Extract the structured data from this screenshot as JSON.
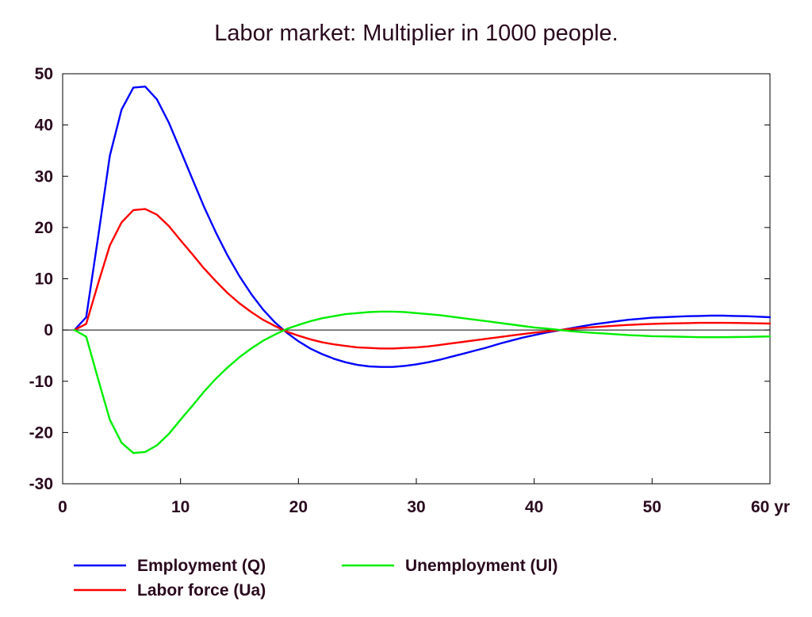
{
  "chart_data": {
    "type": "line",
    "title": "Labor market: Multiplier in 1000 people.",
    "xlabel": "",
    "ylabel": "",
    "xlim": [
      0,
      60
    ],
    "ylim": [
      -30,
      50
    ],
    "x_ticks": [
      {
        "value": 0,
        "label": "0"
      },
      {
        "value": 10,
        "label": "10"
      },
      {
        "value": 20,
        "label": "20"
      },
      {
        "value": 30,
        "label": "30"
      },
      {
        "value": 40,
        "label": "40"
      },
      {
        "value": 50,
        "label": "50"
      },
      {
        "value": 60,
        "label": "60 yr"
      }
    ],
    "y_ticks": [
      {
        "value": 50,
        "label": "50"
      },
      {
        "value": 40,
        "label": "40"
      },
      {
        "value": 30,
        "label": "30"
      },
      {
        "value": 20,
        "label": "20"
      },
      {
        "value": 10,
        "label": "10"
      },
      {
        "value": 0,
        "label": "0"
      },
      {
        "value": -10,
        "label": "-10"
      },
      {
        "value": -20,
        "label": "-20"
      },
      {
        "value": -30,
        "label": "-30"
      }
    ],
    "zero_line": true,
    "grid": false,
    "legend_position": "bottom",
    "series": [
      {
        "name": "Employment (Q)",
        "color": "#0000ff",
        "points": [
          [
            1,
            0
          ],
          [
            2,
            2.5
          ],
          [
            3,
            18
          ],
          [
            4,
            34
          ],
          [
            5,
            43
          ],
          [
            6,
            47.3
          ],
          [
            7,
            47.5
          ],
          [
            8,
            45
          ],
          [
            9,
            40.5
          ],
          [
            10,
            35
          ],
          [
            11,
            29.5
          ],
          [
            12,
            24
          ],
          [
            13,
            19
          ],
          [
            14,
            14.5
          ],
          [
            15,
            10.5
          ],
          [
            16,
            7
          ],
          [
            17,
            4
          ],
          [
            18,
            1.5
          ],
          [
            19,
            -0.5
          ],
          [
            20,
            -2.2
          ],
          [
            21,
            -3.6
          ],
          [
            22,
            -4.7
          ],
          [
            23,
            -5.6
          ],
          [
            24,
            -6.3
          ],
          [
            25,
            -6.8
          ],
          [
            26,
            -7.1
          ],
          [
            27,
            -7.2
          ],
          [
            28,
            -7.2
          ],
          [
            29,
            -7
          ],
          [
            30,
            -6.7
          ],
          [
            31,
            -6.3
          ],
          [
            32,
            -5.8
          ],
          [
            33,
            -5.2
          ],
          [
            34,
            -4.6
          ],
          [
            35,
            -4
          ],
          [
            36,
            -3.4
          ],
          [
            37,
            -2.7
          ],
          [
            38,
            -2.1
          ],
          [
            39,
            -1.5
          ],
          [
            40,
            -1
          ],
          [
            41,
            -0.5
          ],
          [
            42,
            -0.1
          ],
          [
            43,
            0.3
          ],
          [
            44,
            0.7
          ],
          [
            45,
            1.1
          ],
          [
            46,
            1.4
          ],
          [
            47,
            1.7
          ],
          [
            48,
            2
          ],
          [
            49,
            2.2
          ],
          [
            50,
            2.4
          ],
          [
            51,
            2.5
          ],
          [
            52,
            2.6
          ],
          [
            53,
            2.7
          ],
          [
            54,
            2.75
          ],
          [
            55,
            2.8
          ],
          [
            56,
            2.8
          ],
          [
            57,
            2.75
          ],
          [
            58,
            2.7
          ],
          [
            59,
            2.6
          ],
          [
            60,
            2.5
          ]
        ]
      },
      {
        "name": "Labor force (Ua)",
        "color": "#ff0000",
        "points": [
          [
            1,
            0
          ],
          [
            2,
            1.2
          ],
          [
            3,
            9
          ],
          [
            4,
            16.5
          ],
          [
            5,
            21
          ],
          [
            6,
            23.4
          ],
          [
            7,
            23.6
          ],
          [
            8,
            22.5
          ],
          [
            9,
            20.3
          ],
          [
            10,
            17.5
          ],
          [
            11,
            14.8
          ],
          [
            12,
            12
          ],
          [
            13,
            9.5
          ],
          [
            14,
            7.2
          ],
          [
            15,
            5.2
          ],
          [
            16,
            3.5
          ],
          [
            17,
            2
          ],
          [
            18,
            0.8
          ],
          [
            19,
            -0.3
          ],
          [
            20,
            -1.1
          ],
          [
            21,
            -1.8
          ],
          [
            22,
            -2.4
          ],
          [
            23,
            -2.8
          ],
          [
            24,
            -3.1
          ],
          [
            25,
            -3.4
          ],
          [
            26,
            -3.5
          ],
          [
            27,
            -3.6
          ],
          [
            28,
            -3.6
          ],
          [
            29,
            -3.5
          ],
          [
            30,
            -3.4
          ],
          [
            31,
            -3.2
          ],
          [
            32,
            -2.9
          ],
          [
            33,
            -2.6
          ],
          [
            34,
            -2.3
          ],
          [
            35,
            -2
          ],
          [
            36,
            -1.7
          ],
          [
            37,
            -1.4
          ],
          [
            38,
            -1.1
          ],
          [
            39,
            -0.8
          ],
          [
            40,
            -0.5
          ],
          [
            41,
            -0.3
          ],
          [
            42,
            -0.05
          ],
          [
            43,
            0.2
          ],
          [
            44,
            0.4
          ],
          [
            45,
            0.55
          ],
          [
            46,
            0.7
          ],
          [
            47,
            0.85
          ],
          [
            48,
            1
          ],
          [
            49,
            1.1
          ],
          [
            50,
            1.2
          ],
          [
            51,
            1.25
          ],
          [
            52,
            1.3
          ],
          [
            53,
            1.35
          ],
          [
            54,
            1.4
          ],
          [
            55,
            1.4
          ],
          [
            56,
            1.4
          ],
          [
            57,
            1.38
          ],
          [
            58,
            1.35
          ],
          [
            59,
            1.3
          ],
          [
            60,
            1.25
          ]
        ]
      },
      {
        "name": "Unemployment (Ul)",
        "color": "#00ee00",
        "points": [
          [
            1,
            0
          ],
          [
            2,
            -1.3
          ],
          [
            3,
            -9.5
          ],
          [
            4,
            -17.5
          ],
          [
            5,
            -22
          ],
          [
            6,
            -24
          ],
          [
            7,
            -23.8
          ],
          [
            8,
            -22.5
          ],
          [
            9,
            -20.3
          ],
          [
            10,
            -17.5
          ],
          [
            11,
            -14.8
          ],
          [
            12,
            -12
          ],
          [
            13,
            -9.5
          ],
          [
            14,
            -7.3
          ],
          [
            15,
            -5.3
          ],
          [
            16,
            -3.6
          ],
          [
            17,
            -2.1
          ],
          [
            18,
            -0.9
          ],
          [
            19,
            0.2
          ],
          [
            20,
            1
          ],
          [
            21,
            1.7
          ],
          [
            22,
            2.3
          ],
          [
            23,
            2.7
          ],
          [
            24,
            3.1
          ],
          [
            25,
            3.3
          ],
          [
            26,
            3.5
          ],
          [
            27,
            3.6
          ],
          [
            28,
            3.6
          ],
          [
            29,
            3.5
          ],
          [
            30,
            3.3
          ],
          [
            31,
            3.1
          ],
          [
            32,
            2.9
          ],
          [
            33,
            2.6
          ],
          [
            34,
            2.3
          ],
          [
            35,
            2
          ],
          [
            36,
            1.7
          ],
          [
            37,
            1.4
          ],
          [
            38,
            1.1
          ],
          [
            39,
            0.8
          ],
          [
            40,
            0.5
          ],
          [
            41,
            0.3
          ],
          [
            42,
            0.05
          ],
          [
            43,
            -0.2
          ],
          [
            44,
            -0.4
          ],
          [
            45,
            -0.55
          ],
          [
            46,
            -0.7
          ],
          [
            47,
            -0.85
          ],
          [
            48,
            -1
          ],
          [
            49,
            -1.1
          ],
          [
            50,
            -1.2
          ],
          [
            51,
            -1.25
          ],
          [
            52,
            -1.3
          ],
          [
            53,
            -1.35
          ],
          [
            54,
            -1.4
          ],
          [
            55,
            -1.4
          ],
          [
            56,
            -1.4
          ],
          [
            57,
            -1.38
          ],
          [
            58,
            -1.35
          ],
          [
            59,
            -1.3
          ],
          [
            60,
            -1.25
          ]
        ]
      }
    ]
  }
}
